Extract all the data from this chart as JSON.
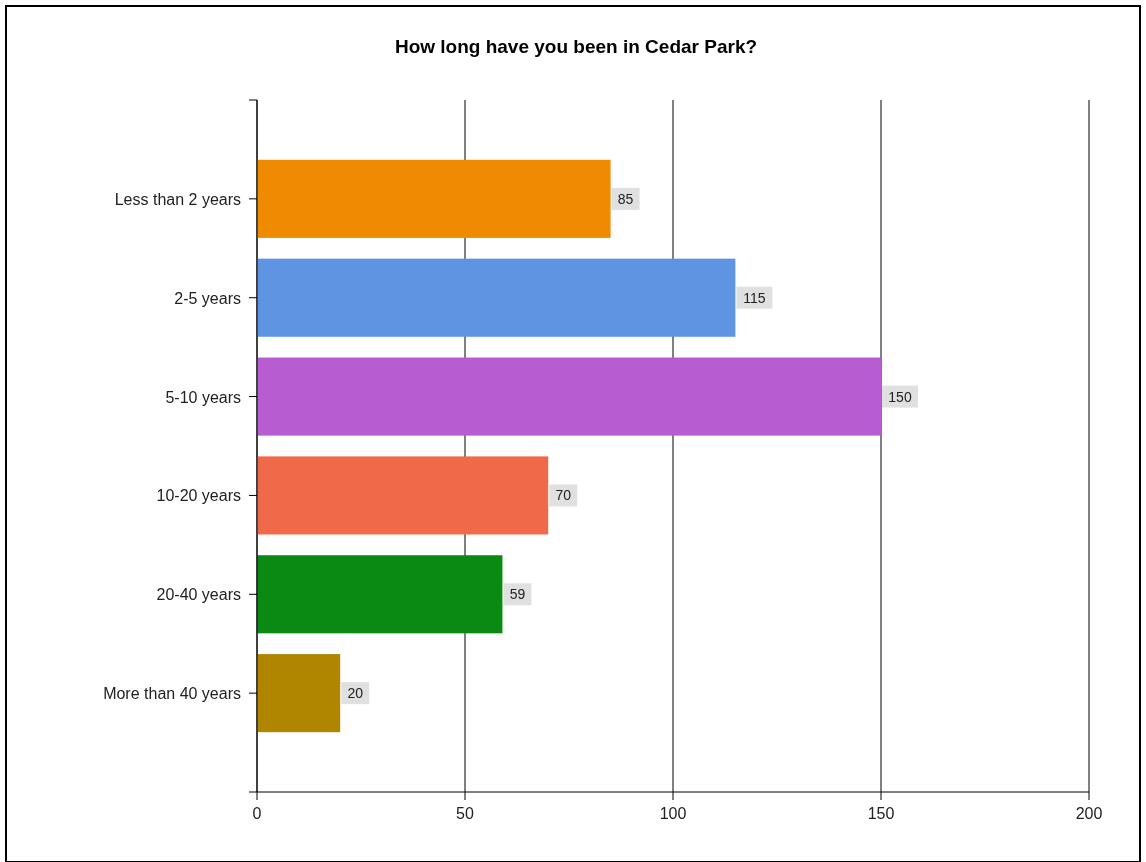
{
  "chart_data": {
    "type": "bar",
    "orientation": "horizontal",
    "title": "How long have you been in Cedar Park?",
    "categories": [
      "Less than 2 years",
      "2-5 years",
      "5-10 years",
      "10-20 years",
      "20-40 years",
      "More than 40 years"
    ],
    "values": [
      85,
      115,
      150,
      70,
      59,
      20
    ],
    "colors": [
      "#f08a00",
      "#5e94e2",
      "#b85cd2",
      "#f06a4a",
      "#0a8a12",
      "#b08600"
    ],
    "xlim": [
      0,
      200
    ],
    "xticks": [
      0,
      50,
      100,
      150,
      200
    ],
    "grid": "x",
    "data_labels": true
  }
}
